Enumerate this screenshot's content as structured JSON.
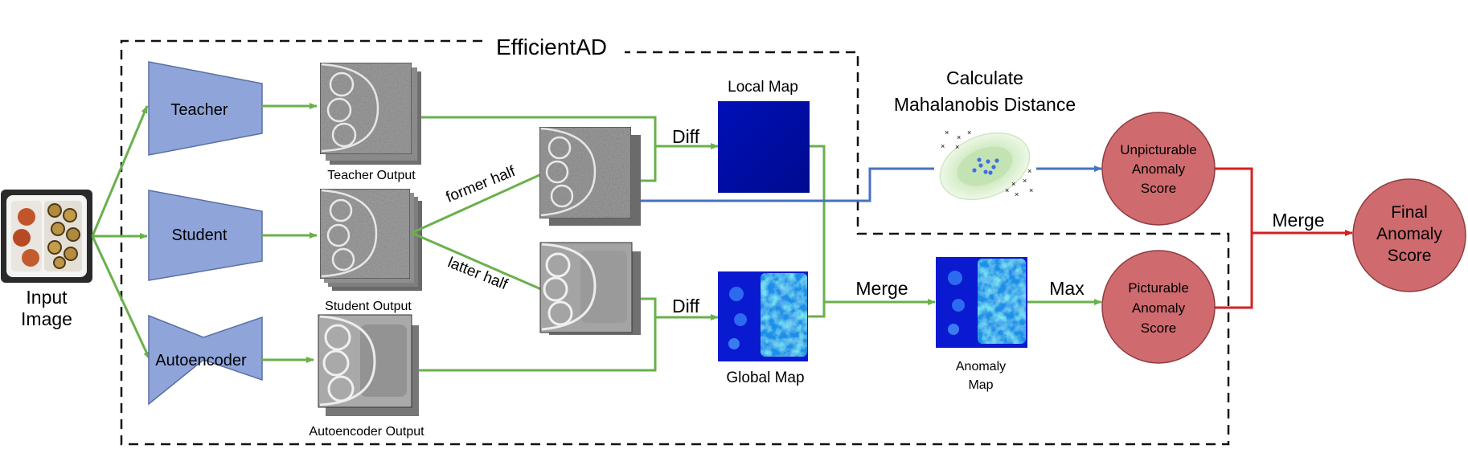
{
  "diagram": {
    "title": "EfficientAD",
    "input": {
      "label_line1": "Input",
      "label_line2": "Image"
    },
    "networks": [
      {
        "id": "teacher",
        "label": "Teacher"
      },
      {
        "id": "student",
        "label": "Student"
      },
      {
        "id": "autoencoder",
        "label": "Autoencoder"
      }
    ],
    "outputs": {
      "teacher": "Teacher Output",
      "student": "Student Output",
      "autoencoder": "Autoencoder Output"
    },
    "split": {
      "former": "former half",
      "latter": "latter half"
    },
    "diff_top": "Diff",
    "diff_bottom": "Diff",
    "local_map": "Local Map",
    "global_map": "Global Map",
    "merge_maps": "Merge",
    "anomaly_map": {
      "line1": "Anomaly",
      "line2": "Map"
    },
    "max_label": "Max",
    "mahalanobis": {
      "line1": "Calculate",
      "line2": "Mahalanobis Distance"
    },
    "unpicturable": {
      "line1": "Unpicturable",
      "line2": "Anomaly",
      "line3": "Score"
    },
    "picturable": {
      "line1": "Picturable",
      "line2": "Anomaly",
      "line3": "Score"
    },
    "merge_scores": "Merge",
    "final": {
      "line1": "Final",
      "line2": "Anomaly",
      "line3": "Score"
    },
    "colors": {
      "green_arrow": "#6ab04c",
      "blue_arrow": "#4472c4",
      "red_arrow": "#d62020",
      "network_fill": "#8fa5da",
      "score_fill": "#cf6b6f",
      "map_dark": "#000a9c"
    }
  }
}
